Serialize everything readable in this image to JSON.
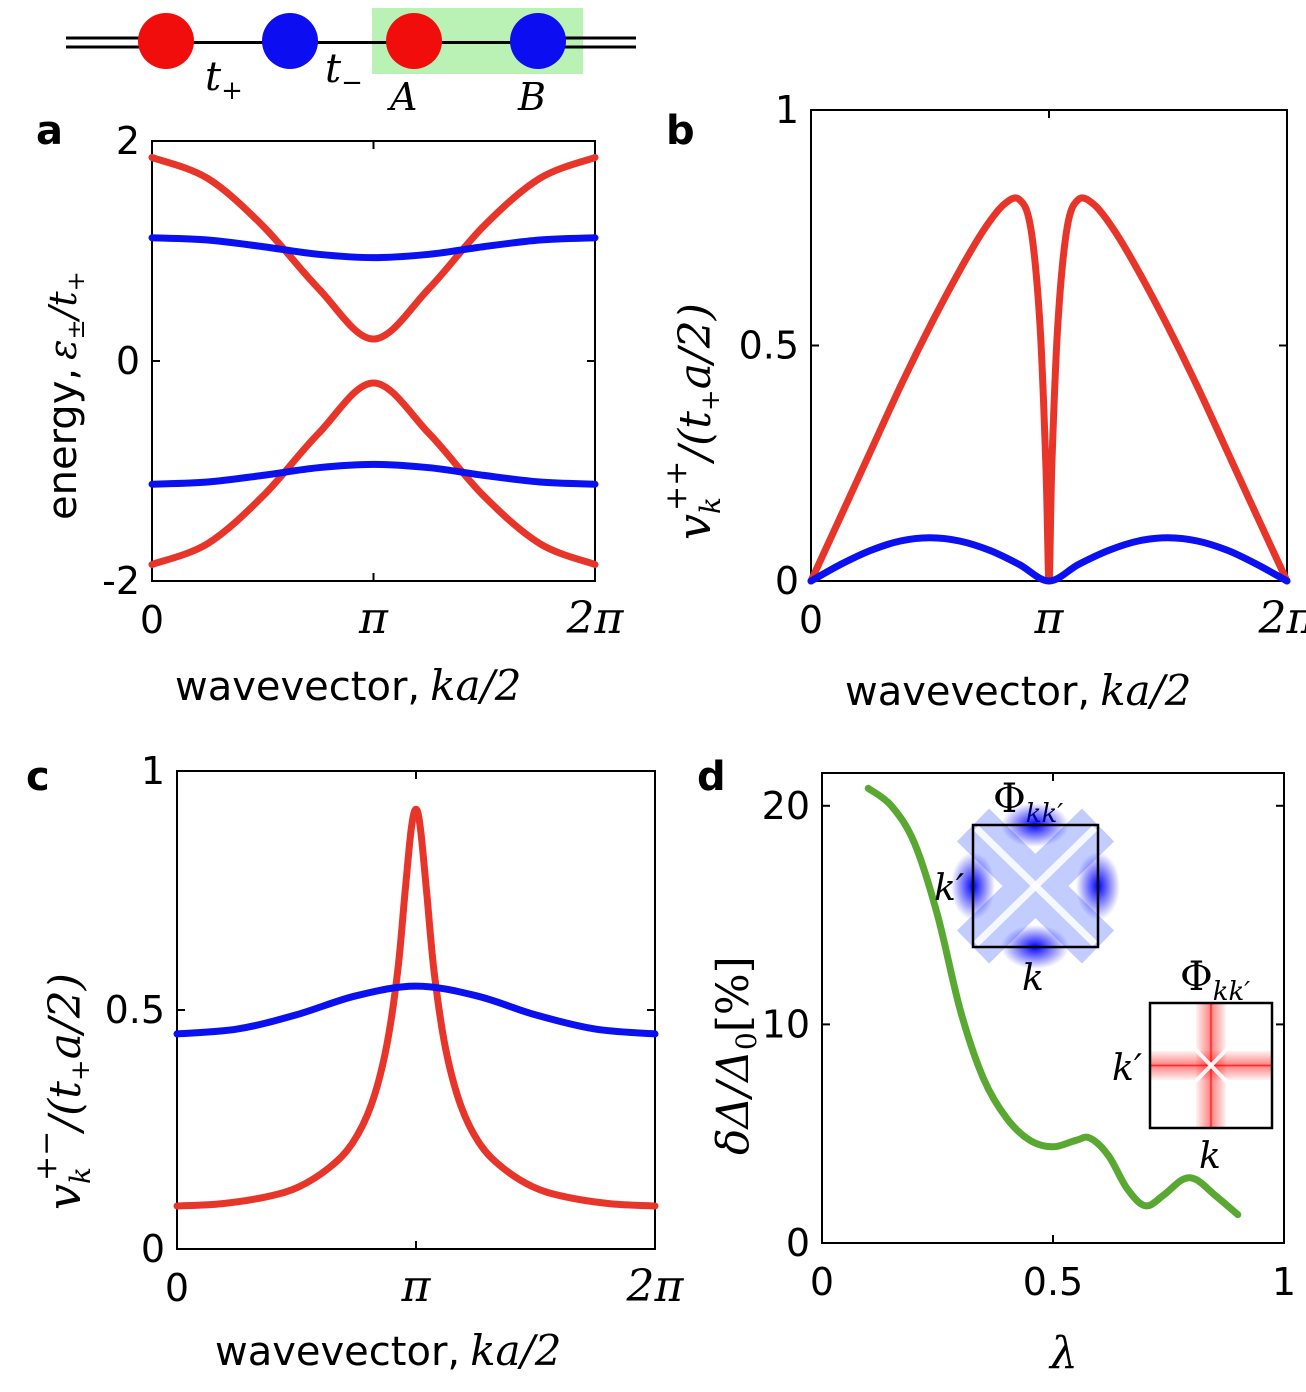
{
  "colors": {
    "red": "#e8352a",
    "blue": "#0a10f0",
    "green": "#59a832",
    "cell": "#b9f2b4",
    "atom_a": "#f20d0d",
    "atom_b": "#0d0df2"
  },
  "schematic": {
    "hop_plus": "t",
    "hop_plus_sub": "+",
    "hop_minus": "t",
    "hop_minus_sub": "−",
    "site_a": "A",
    "site_b": "B"
  },
  "labels": {
    "xlabel_text": "wavevector,",
    "xlabel_math": "ka/2",
    "ylabel_a_text": "energy,",
    "ylabel_a_math": "ε",
    "ylabel_a_sub": "±",
    "ylabel_a_tail": "/t",
    "ylabel_a_tail_sub": "+",
    "ylabel_b_v": "v",
    "ylabel_b_sub": "k",
    "ylabel_b_sup": "++",
    "ylabel_b_tail": "/(t",
    "ylabel_b_tail_sub": "+",
    "ylabel_b_end": "a/2)",
    "ylabel_c_v": "v",
    "ylabel_c_sub": "k",
    "ylabel_c_sup": "+−",
    "ylabel_c_tail": "/(t",
    "ylabel_c_tail_sub": "+",
    "ylabel_c_end": "a/2)",
    "ylabel_d": "δΔ/Δ",
    "ylabel_d_sub": "0",
    "ylabel_d_tail": "[%]",
    "xlabel_d": "λ"
  },
  "chart_data": [
    {
      "panel": "a",
      "type": "line",
      "xlabel": "wavevector, ka/2",
      "ylabel": "energy, ε±/t+",
      "xticks": [
        "0",
        "π",
        "2π"
      ],
      "xtick_values": [
        0,
        3.14159,
        6.28318
      ],
      "yticks": [
        "2",
        "0",
        "-2"
      ],
      "ytick_values": [
        2,
        0,
        -2
      ],
      "xlim": [
        0,
        6.28318
      ],
      "ylim": [
        -2,
        2
      ],
      "series": [
        {
          "name": "red upper band",
          "color": "red",
          "x": [
            0,
            0.79,
            1.57,
            2.36,
            3.14159,
            3.93,
            4.71,
            5.5,
            6.28318
          ],
          "values": [
            1.85,
            1.66,
            1.23,
            0.66,
            0.2,
            0.66,
            1.23,
            1.66,
            1.85
          ]
        },
        {
          "name": "red lower band",
          "color": "red",
          "x": [
            0,
            0.79,
            1.57,
            2.36,
            3.14159,
            3.93,
            4.71,
            5.5,
            6.28318
          ],
          "values": [
            -1.85,
            -1.66,
            -1.23,
            -0.66,
            -0.2,
            -0.66,
            -1.23,
            -1.66,
            -1.85
          ]
        },
        {
          "name": "blue upper band",
          "color": "blue",
          "x": [
            0,
            0.79,
            1.57,
            2.36,
            3.14159,
            3.93,
            4.71,
            5.5,
            6.28318
          ],
          "values": [
            1.12,
            1.1,
            1.04,
            0.97,
            0.94,
            0.97,
            1.04,
            1.1,
            1.12
          ]
        },
        {
          "name": "blue lower band",
          "color": "blue",
          "x": [
            0,
            0.79,
            1.57,
            2.36,
            3.14159,
            3.93,
            4.71,
            5.5,
            6.28318
          ],
          "values": [
            -1.12,
            -1.1,
            -1.04,
            -0.97,
            -0.94,
            -0.97,
            -1.04,
            -1.1,
            -1.12
          ]
        }
      ]
    },
    {
      "panel": "b",
      "type": "line",
      "xlabel": "wavevector, ka/2",
      "ylabel": "v_k^{++}/(t+ a/2)",
      "xticks": [
        "0",
        "π",
        "2π"
      ],
      "xtick_values": [
        0,
        3.14159,
        6.28318
      ],
      "yticks": [
        "1",
        "0.5",
        "0"
      ],
      "ytick_values": [
        1,
        0.5,
        0
      ],
      "xlim": [
        0,
        6.28318
      ],
      "ylim": [
        0,
        1
      ],
      "series": [
        {
          "name": "red",
          "color": "red",
          "x": [
            0,
            0.4,
            0.8,
            1.2,
            1.6,
            2.0,
            2.3,
            2.55,
            2.75,
            2.9,
            3.02,
            3.1,
            3.14159,
            3.18,
            3.26,
            3.38,
            3.53,
            3.73,
            3.98,
            4.28,
            4.68,
            5.08,
            5.48,
            5.88,
            6.28318
          ],
          "values": [
            0,
            0.14,
            0.28,
            0.42,
            0.55,
            0.67,
            0.75,
            0.8,
            0.81,
            0.75,
            0.55,
            0.25,
            0,
            0.25,
            0.55,
            0.75,
            0.81,
            0.8,
            0.75,
            0.67,
            0.55,
            0.42,
            0.28,
            0.14,
            0
          ]
        },
        {
          "name": "blue",
          "color": "blue",
          "x": [
            0,
            0.39,
            0.79,
            1.18,
            1.57,
            1.96,
            2.36,
            2.75,
            3.14159,
            3.53,
            3.93,
            4.32,
            4.71,
            5.1,
            5.5,
            5.89,
            6.28318
          ],
          "values": [
            0,
            0.035,
            0.065,
            0.085,
            0.092,
            0.085,
            0.065,
            0.035,
            0,
            0.035,
            0.065,
            0.085,
            0.092,
            0.085,
            0.065,
            0.035,
            0
          ]
        }
      ]
    },
    {
      "panel": "c",
      "type": "line",
      "xlabel": "wavevector, ka/2",
      "ylabel": "v_k^{+-}/(t+ a/2)",
      "xticks": [
        "0",
        "π",
        "2π"
      ],
      "xtick_values": [
        0,
        3.14159,
        6.28318
      ],
      "yticks": [
        "1",
        "0.5",
        "0"
      ],
      "ytick_values": [
        1,
        0.5,
        0
      ],
      "xlim": [
        0,
        6.28318
      ],
      "ylim": [
        0,
        1
      ],
      "series": [
        {
          "name": "red",
          "color": "red",
          "x": [
            0,
            0.6,
            1.2,
            1.6,
            2.0,
            2.3,
            2.55,
            2.75,
            2.9,
            3.0,
            3.08,
            3.14159,
            3.2,
            3.28,
            3.38,
            3.53,
            3.73,
            3.98,
            4.28,
            4.68,
            5.08,
            5.68,
            6.28318
          ],
          "values": [
            0.09,
            0.095,
            0.11,
            0.13,
            0.17,
            0.22,
            0.3,
            0.42,
            0.58,
            0.75,
            0.88,
            0.92,
            0.88,
            0.75,
            0.58,
            0.42,
            0.3,
            0.22,
            0.17,
            0.13,
            0.11,
            0.095,
            0.09
          ]
        },
        {
          "name": "blue",
          "color": "blue",
          "x": [
            0,
            0.79,
            1.57,
            2.36,
            3.14159,
            3.93,
            4.71,
            5.5,
            6.28318
          ],
          "values": [
            0.45,
            0.46,
            0.49,
            0.53,
            0.55,
            0.53,
            0.49,
            0.46,
            0.45
          ]
        }
      ]
    },
    {
      "panel": "d",
      "type": "line",
      "xlabel": "λ",
      "ylabel": "δΔ/Δ0[%]",
      "xticks": [
        "0",
        "0.5",
        "1"
      ],
      "xtick_values": [
        0,
        0.5,
        1
      ],
      "yticks": [
        "20",
        "10",
        "0"
      ],
      "ytick_values": [
        20,
        10,
        0
      ],
      "xlim": [
        0,
        1
      ],
      "ylim": [
        0,
        21.5
      ],
      "series": [
        {
          "name": "green",
          "color": "green",
          "x": [
            0.1,
            0.15,
            0.2,
            0.25,
            0.3,
            0.35,
            0.4,
            0.45,
            0.5,
            0.55,
            0.58,
            0.62,
            0.66,
            0.7,
            0.74,
            0.78,
            0.81,
            0.85,
            0.9
          ],
          "values": [
            20.8,
            20.0,
            18.3,
            15.0,
            10.6,
            7.5,
            5.7,
            4.7,
            4.4,
            4.7,
            4.8,
            4.0,
            2.5,
            1.7,
            2.2,
            2.9,
            2.9,
            2.2,
            1.3
          ]
        }
      ],
      "insets": [
        {
          "title": "Φ",
          "title_sub": "kk′",
          "xlabel": "k",
          "ylabel": "k′",
          "color": "blue",
          "pattern": "x-shaped"
        },
        {
          "title": "Φ",
          "title_sub": "kk′",
          "xlabel": "k",
          "ylabel": "k′",
          "color": "red",
          "pattern": "cross"
        }
      ]
    }
  ]
}
